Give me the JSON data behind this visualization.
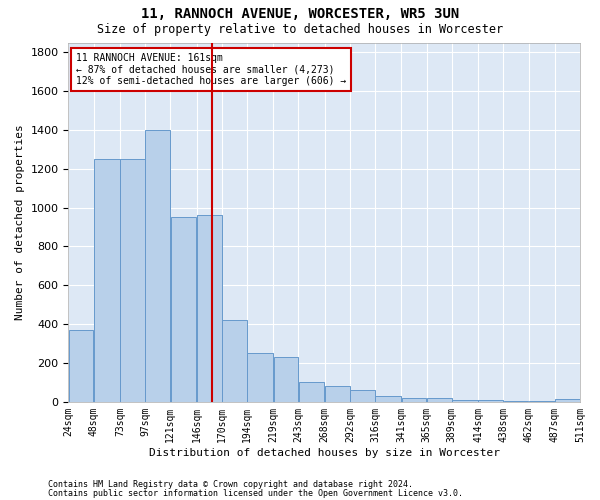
{
  "title": "11, RANNOCH AVENUE, WORCESTER, WR5 3UN",
  "subtitle": "Size of property relative to detached houses in Worcester",
  "xlabel": "Distribution of detached houses by size in Worcester",
  "ylabel": "Number of detached properties",
  "footnote1": "Contains HM Land Registry data © Crown copyright and database right 2024.",
  "footnote2": "Contains public sector information licensed under the Open Government Licence v3.0.",
  "annotation_title": "11 RANNOCH AVENUE: 161sqm",
  "annotation_line1": "← 87% of detached houses are smaller (4,273)",
  "annotation_line2": "12% of semi-detached houses are larger (606) →",
  "property_size": 161,
  "bar_left_edges": [
    24,
    48,
    73,
    97,
    121,
    146,
    170,
    194,
    219,
    243,
    268,
    292,
    316,
    341,
    365,
    389,
    414,
    438,
    462,
    487
  ],
  "bar_widths": [
    24,
    25,
    24,
    24,
    25,
    24,
    24,
    25,
    24,
    25,
    24,
    24,
    25,
    24,
    24,
    25,
    24,
    24,
    25,
    24
  ],
  "bar_heights": [
    370,
    1250,
    1250,
    1400,
    950,
    960,
    420,
    250,
    230,
    100,
    80,
    60,
    30,
    20,
    20,
    10,
    8,
    5,
    5,
    15
  ],
  "bar_color": "#b8d0ea",
  "bar_edge_color": "#6699cc",
  "vline_x": 161,
  "vline_color": "#cc0000",
  "box_color": "#cc0000",
  "background_color": "#dde8f5",
  "ylim": [
    0,
    1850
  ],
  "yticks": [
    0,
    200,
    400,
    600,
    800,
    1000,
    1200,
    1400,
    1600,
    1800
  ],
  "tick_labels": [
    "24sqm",
    "48sqm",
    "73sqm",
    "97sqm",
    "121sqm",
    "146sqm",
    "170sqm",
    "194sqm",
    "219sqm",
    "243sqm",
    "268sqm",
    "292sqm",
    "316sqm",
    "341sqm",
    "365sqm",
    "389sqm",
    "414sqm",
    "438sqm",
    "462sqm",
    "487sqm",
    "511sqm"
  ],
  "title_fontsize": 10,
  "subtitle_fontsize": 8.5,
  "xlabel_fontsize": 8,
  "ylabel_fontsize": 8,
  "xtick_fontsize": 7,
  "ytick_fontsize": 8,
  "annotation_fontsize": 7,
  "footnote_fontsize": 6
}
